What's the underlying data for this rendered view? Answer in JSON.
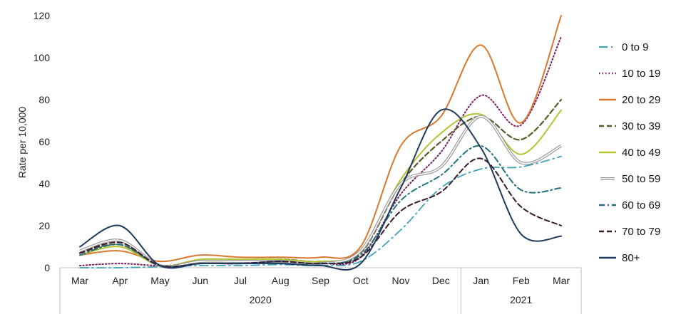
{
  "chart_data": {
    "type": "line",
    "title": "",
    "xlabel": "",
    "ylabel": "Rate per 10,000",
    "ylim": [
      0,
      120
    ],
    "yticks": [
      0,
      20,
      40,
      60,
      80,
      100,
      120
    ],
    "grid": false,
    "legend_position": "right",
    "categories": [
      "Mar",
      "Apr",
      "May",
      "Jun",
      "Jul",
      "Aug",
      "Sep",
      "Oct",
      "Nov",
      "Dec",
      "Jan",
      "Feb",
      "Mar"
    ],
    "year_groups": [
      {
        "label": "2020",
        "start": 0,
        "end": 9
      },
      {
        "label": "2021",
        "start": 10,
        "end": 12
      }
    ],
    "series": [
      {
        "name": "0 to 9",
        "color": "#3fa3b5",
        "dash": "long-dash-dot",
        "width": 1.8,
        "values": [
          0,
          0,
          0.5,
          1,
          1,
          1.5,
          1,
          3,
          18,
          38,
          47,
          48,
          53
        ]
      },
      {
        "name": "10 to 19",
        "color": "#7a1f5c",
        "dash": "dotted",
        "width": 2,
        "values": [
          1,
          2,
          1,
          2,
          2,
          2.5,
          2,
          5,
          35,
          55,
          82,
          68,
          110
        ]
      },
      {
        "name": "20 to 29",
        "color": "#d9782d",
        "dash": "solid",
        "width": 2,
        "values": [
          6,
          8,
          3,
          6,
          5,
          5,
          5,
          10,
          58,
          72,
          106,
          69,
          120
        ]
      },
      {
        "name": "30 to 39",
        "color": "#5a5a2a",
        "dash": "dashed",
        "width": 2.2,
        "values": [
          7,
          11,
          1,
          3,
          3,
          4,
          3,
          7,
          40,
          60,
          72,
          61,
          80
        ]
      },
      {
        "name": "40 to 49",
        "color": "#b5c334",
        "dash": "solid",
        "width": 2,
        "values": [
          6,
          10,
          1,
          4,
          4,
          4,
          3,
          8,
          42,
          64,
          73,
          54,
          75
        ]
      },
      {
        "name": "50 to 59",
        "color": "#9a9a9a",
        "dash": "double",
        "width": 1.4,
        "values": [
          8,
          13,
          1,
          3,
          3,
          3,
          2,
          8,
          40,
          48,
          72,
          50,
          58
        ]
      },
      {
        "name": "60 to 69",
        "color": "#23727f",
        "dash": "dash-dot",
        "width": 2,
        "values": [
          6,
          11,
          1,
          2,
          2,
          3,
          2,
          6,
          32,
          44,
          58,
          37,
          38
        ]
      },
      {
        "name": "70 to 79",
        "color": "#3a1a2e",
        "dash": "dashed",
        "width": 2,
        "values": [
          7,
          12,
          1,
          2,
          2,
          3,
          2,
          5,
          27,
          36,
          52,
          29,
          20
        ]
      },
      {
        "name": "80+",
        "color": "#1f3a5f",
        "dash": "solid",
        "width": 2,
        "values": [
          10,
          20,
          1,
          2,
          2,
          2,
          1,
          2,
          38,
          75,
          57,
          16,
          15
        ]
      }
    ]
  }
}
